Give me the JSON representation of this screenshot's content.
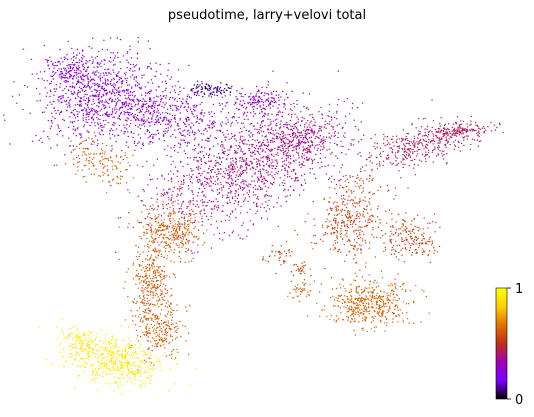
{
  "chart_data": {
    "type": "scatter",
    "title": "pseudotime, larry+velovi total",
    "xlabel": "",
    "ylabel": "",
    "value_range": [
      0,
      1
    ],
    "colorbar": {
      "min_label": "0",
      "max_label": "1",
      "colormap": [
        "#000000",
        "#7a00ff",
        "#a000b8",
        "#c0301a",
        "#e07000",
        "#ffd000",
        "#ffff00"
      ]
    },
    "clusters": [
      {
        "name": "top-left",
        "value": 0.26
      },
      {
        "name": "top-center",
        "value": 0.28
      },
      {
        "name": "dark-band",
        "value": 0.08
      },
      {
        "name": "center",
        "value": 0.38
      },
      {
        "name": "right-arm-top",
        "value": 0.43
      },
      {
        "name": "right-arm-lower",
        "value": 0.55
      },
      {
        "name": "right-bottom",
        "value": 0.63
      },
      {
        "name": "left-stem",
        "value": 0.62
      },
      {
        "name": "bottom-left",
        "value": 0.92
      }
    ]
  }
}
